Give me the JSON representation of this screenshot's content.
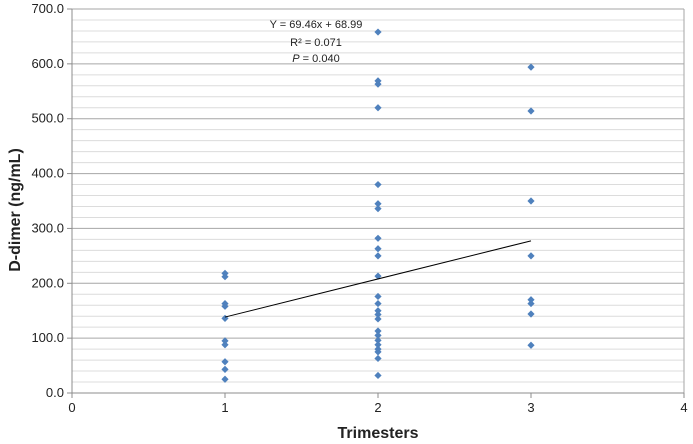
{
  "chart_data": {
    "type": "scatter",
    "xlabel": "Trimesters",
    "ylabel": "D-dimer (ng/mL)",
    "xlim": [
      0,
      4
    ],
    "ylim": [
      0,
      700
    ],
    "x_ticks": [
      "0",
      "1",
      "2",
      "3",
      "4"
    ],
    "y_ticks": [
      "0.0",
      "100.0",
      "200.0",
      "300.0",
      "400.0",
      "500.0",
      "600.0",
      "700.0"
    ],
    "grid": true,
    "marker_color": "#4f81bd",
    "trendline_color": "#000000",
    "points": [
      {
        "x": 1,
        "y": 218
      },
      {
        "x": 1,
        "y": 212
      },
      {
        "x": 1,
        "y": 163
      },
      {
        "x": 1,
        "y": 158
      },
      {
        "x": 1,
        "y": 136
      },
      {
        "x": 1,
        "y": 95
      },
      {
        "x": 1,
        "y": 88
      },
      {
        "x": 1,
        "y": 57
      },
      {
        "x": 1,
        "y": 43
      },
      {
        "x": 1,
        "y": 25
      },
      {
        "x": 2,
        "y": 658
      },
      {
        "x": 2,
        "y": 569
      },
      {
        "x": 2,
        "y": 563
      },
      {
        "x": 2,
        "y": 520
      },
      {
        "x": 2,
        "y": 380
      },
      {
        "x": 2,
        "y": 345
      },
      {
        "x": 2,
        "y": 336
      },
      {
        "x": 2,
        "y": 282
      },
      {
        "x": 2,
        "y": 263
      },
      {
        "x": 2,
        "y": 250
      },
      {
        "x": 2,
        "y": 213
      },
      {
        "x": 2,
        "y": 176
      },
      {
        "x": 2,
        "y": 163
      },
      {
        "x": 2,
        "y": 150
      },
      {
        "x": 2,
        "y": 143
      },
      {
        "x": 2,
        "y": 135
      },
      {
        "x": 2,
        "y": 113
      },
      {
        "x": 2,
        "y": 105
      },
      {
        "x": 2,
        "y": 96
      },
      {
        "x": 2,
        "y": 88
      },
      {
        "x": 2,
        "y": 80
      },
      {
        "x": 2,
        "y": 75
      },
      {
        "x": 2,
        "y": 63
      },
      {
        "x": 2,
        "y": 32
      },
      {
        "x": 3,
        "y": 594
      },
      {
        "x": 3,
        "y": 514
      },
      {
        "x": 3,
        "y": 350
      },
      {
        "x": 3,
        "y": 250
      },
      {
        "x": 3,
        "y": 170
      },
      {
        "x": 3,
        "y": 163
      },
      {
        "x": 3,
        "y": 144
      },
      {
        "x": 3,
        "y": 87
      }
    ],
    "trendline": {
      "slope": 69.46,
      "intercept": 68.99,
      "x_range": [
        1,
        3
      ]
    },
    "annotations": {
      "equation": "Y = 69.46x + 68.99",
      "r2": "R² = 0.071",
      "p_label": "P",
      "p_value": " = 0.040"
    }
  }
}
